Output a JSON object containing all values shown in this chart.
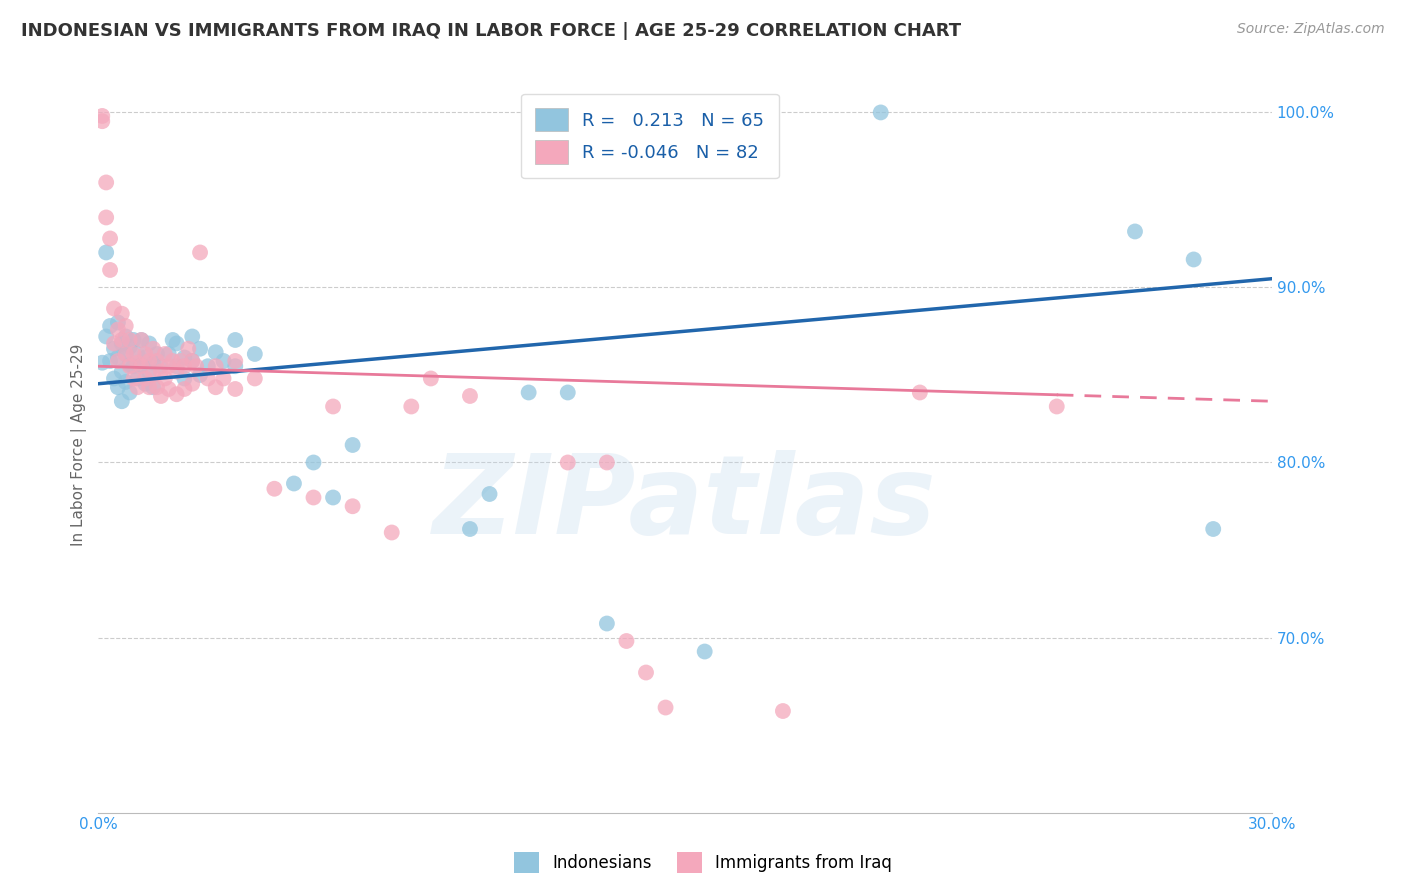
{
  "title": "INDONESIAN VS IMMIGRANTS FROM IRAQ IN LABOR FORCE | AGE 25-29 CORRELATION CHART",
  "source": "Source: ZipAtlas.com",
  "ylabel": "In Labor Force | Age 25-29",
  "x_min": 0.0,
  "x_max": 0.3,
  "y_min": 0.6,
  "y_max": 1.02,
  "x_ticks": [
    0.0,
    0.05,
    0.1,
    0.15,
    0.2,
    0.25,
    0.3
  ],
  "y_ticks": [
    0.7,
    0.8,
    0.9,
    1.0
  ],
  "y_tick_labels": [
    "70.0%",
    "80.0%",
    "90.0%",
    "100.0%"
  ],
  "legend_blue_r": "0.213",
  "legend_blue_n": "65",
  "legend_pink_r": "-0.046",
  "legend_pink_n": "82",
  "legend_blue_label": "Indonesians",
  "legend_pink_label": "Immigrants from Iraq",
  "blue_color": "#92c5de",
  "pink_color": "#f4a8bc",
  "blue_line_color": "#2166ac",
  "pink_line_color": "#e8799a",
  "watermark": "ZIPatlas",
  "background_color": "#ffffff",
  "blue_scatter": [
    [
      0.001,
      0.857
    ],
    [
      0.002,
      0.872
    ],
    [
      0.002,
      0.92
    ],
    [
      0.003,
      0.858
    ],
    [
      0.003,
      0.878
    ],
    [
      0.004,
      0.865
    ],
    [
      0.004,
      0.848
    ],
    [
      0.005,
      0.86
    ],
    [
      0.005,
      0.843
    ],
    [
      0.005,
      0.88
    ],
    [
      0.006,
      0.868
    ],
    [
      0.006,
      0.852
    ],
    [
      0.006,
      0.835
    ],
    [
      0.007,
      0.862
    ],
    [
      0.007,
      0.846
    ],
    [
      0.007,
      0.872
    ],
    [
      0.008,
      0.856
    ],
    [
      0.008,
      0.84
    ],
    [
      0.008,
      0.866
    ],
    [
      0.009,
      0.855
    ],
    [
      0.009,
      0.87
    ],
    [
      0.01,
      0.862
    ],
    [
      0.01,
      0.848
    ],
    [
      0.011,
      0.856
    ],
    [
      0.011,
      0.87
    ],
    [
      0.012,
      0.86
    ],
    [
      0.012,
      0.845
    ],
    [
      0.013,
      0.868
    ],
    [
      0.013,
      0.852
    ],
    [
      0.014,
      0.857
    ],
    [
      0.014,
      0.843
    ],
    [
      0.015,
      0.862
    ],
    [
      0.016,
      0.855
    ],
    [
      0.018,
      0.862
    ],
    [
      0.019,
      0.87
    ],
    [
      0.02,
      0.868
    ],
    [
      0.02,
      0.855
    ],
    [
      0.022,
      0.86
    ],
    [
      0.022,
      0.848
    ],
    [
      0.024,
      0.872
    ],
    [
      0.024,
      0.858
    ],
    [
      0.026,
      0.865
    ],
    [
      0.026,
      0.85
    ],
    [
      0.028,
      0.855
    ],
    [
      0.03,
      0.863
    ],
    [
      0.032,
      0.858
    ],
    [
      0.035,
      0.87
    ],
    [
      0.035,
      0.855
    ],
    [
      0.04,
      0.862
    ],
    [
      0.05,
      0.788
    ],
    [
      0.055,
      0.8
    ],
    [
      0.06,
      0.78
    ],
    [
      0.065,
      0.81
    ],
    [
      0.095,
      0.762
    ],
    [
      0.1,
      0.782
    ],
    [
      0.11,
      0.84
    ],
    [
      0.12,
      0.84
    ],
    [
      0.13,
      0.708
    ],
    [
      0.155,
      0.692
    ],
    [
      0.2,
      1.0
    ],
    [
      0.265,
      0.932
    ],
    [
      0.28,
      0.916
    ],
    [
      0.285,
      0.762
    ]
  ],
  "pink_scatter": [
    [
      0.001,
      0.995
    ],
    [
      0.001,
      0.998
    ],
    [
      0.002,
      0.94
    ],
    [
      0.002,
      0.96
    ],
    [
      0.003,
      0.928
    ],
    [
      0.003,
      0.91
    ],
    [
      0.004,
      0.868
    ],
    [
      0.004,
      0.888
    ],
    [
      0.005,
      0.876
    ],
    [
      0.005,
      0.858
    ],
    [
      0.006,
      0.885
    ],
    [
      0.006,
      0.87
    ],
    [
      0.007,
      0.878
    ],
    [
      0.007,
      0.862
    ],
    [
      0.008,
      0.87
    ],
    [
      0.008,
      0.855
    ],
    [
      0.009,
      0.862
    ],
    [
      0.009,
      0.848
    ],
    [
      0.01,
      0.857
    ],
    [
      0.01,
      0.843
    ],
    [
      0.011,
      0.855
    ],
    [
      0.011,
      0.87
    ],
    [
      0.012,
      0.862
    ],
    [
      0.012,
      0.848
    ],
    [
      0.013,
      0.858
    ],
    [
      0.013,
      0.843
    ],
    [
      0.014,
      0.865
    ],
    [
      0.014,
      0.85
    ],
    [
      0.015,
      0.858
    ],
    [
      0.015,
      0.843
    ],
    [
      0.016,
      0.852
    ],
    [
      0.016,
      0.838
    ],
    [
      0.017,
      0.862
    ],
    [
      0.017,
      0.848
    ],
    [
      0.018,
      0.855
    ],
    [
      0.018,
      0.842
    ],
    [
      0.019,
      0.858
    ],
    [
      0.02,
      0.852
    ],
    [
      0.02,
      0.839
    ],
    [
      0.021,
      0.858
    ],
    [
      0.022,
      0.855
    ],
    [
      0.022,
      0.842
    ],
    [
      0.023,
      0.865
    ],
    [
      0.024,
      0.858
    ],
    [
      0.024,
      0.845
    ],
    [
      0.025,
      0.855
    ],
    [
      0.026,
      0.92
    ],
    [
      0.028,
      0.848
    ],
    [
      0.03,
      0.855
    ],
    [
      0.03,
      0.843
    ],
    [
      0.032,
      0.848
    ],
    [
      0.035,
      0.858
    ],
    [
      0.035,
      0.842
    ],
    [
      0.04,
      0.848
    ],
    [
      0.045,
      0.785
    ],
    [
      0.055,
      0.78
    ],
    [
      0.06,
      0.832
    ],
    [
      0.065,
      0.775
    ],
    [
      0.075,
      0.76
    ],
    [
      0.08,
      0.832
    ],
    [
      0.085,
      0.848
    ],
    [
      0.095,
      0.838
    ],
    [
      0.12,
      0.8
    ],
    [
      0.13,
      0.8
    ],
    [
      0.135,
      0.698
    ],
    [
      0.14,
      0.68
    ],
    [
      0.145,
      0.66
    ],
    [
      0.175,
      0.658
    ],
    [
      0.21,
      0.84
    ],
    [
      0.245,
      0.832
    ]
  ]
}
